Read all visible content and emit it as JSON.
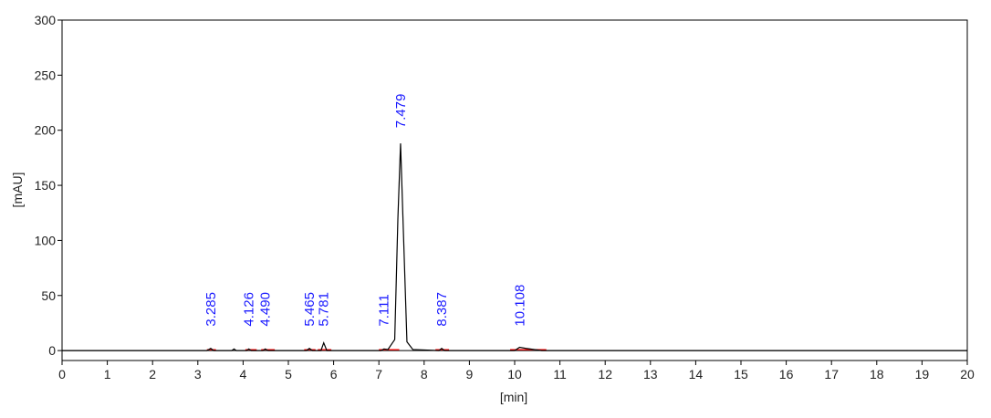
{
  "chart_data": {
    "type": "line",
    "x_label": "[min]",
    "y_label": "[mAU]",
    "x": [
      0,
      3.2,
      3.285,
      3.35,
      3.75,
      3.8,
      3.85,
      4.08,
      4.126,
      4.18,
      4.44,
      4.49,
      4.55,
      5.4,
      5.465,
      5.53,
      5.72,
      5.781,
      5.85,
      7.05,
      7.111,
      7.2,
      7.35,
      7.42,
      7.479,
      7.54,
      7.62,
      7.75,
      8.33,
      8.387,
      8.45,
      10.0,
      10.108,
      10.25,
      10.6,
      20
    ],
    "values": [
      0,
      0,
      2,
      0,
      0,
      1.5,
      0,
      0,
      1.5,
      0,
      0,
      1.5,
      0,
      0,
      2,
      0,
      0,
      7,
      0,
      0,
      1.5,
      1,
      10,
      120,
      188,
      110,
      8,
      1,
      0,
      2,
      0,
      0,
      3,
      2,
      0,
      0
    ],
    "color": "#000000",
    "baselines": [
      [
        3.2,
        3.4
      ],
      [
        4.05,
        4.3
      ],
      [
        4.4,
        4.7
      ],
      [
        5.35,
        5.6
      ],
      [
        5.65,
        5.95
      ],
      [
        7.0,
        7.45
      ],
      [
        8.25,
        8.55
      ],
      [
        9.9,
        10.7
      ]
    ],
    "baseline_color": "#ff0000",
    "peak_labels": [
      {
        "value": 3.285,
        "label": "3.285"
      },
      {
        "value": 4.126,
        "label": "4.126"
      },
      {
        "value": 4.49,
        "label": "4.490"
      },
      {
        "value": 5.465,
        "label": "5.465"
      },
      {
        "value": 5.781,
        "label": "5.781"
      },
      {
        "value": 7.111,
        "label": "7.111"
      },
      {
        "value": 7.479,
        "label": "7.479"
      },
      {
        "value": 8.387,
        "label": "8.387"
      },
      {
        "value": 10.108,
        "label": "10.108"
      }
    ],
    "xlim": [
      0,
      20
    ],
    "xticks": [
      0,
      1,
      2,
      3,
      4,
      5,
      6,
      7,
      8,
      9,
      10,
      11,
      12,
      13,
      14,
      15,
      16,
      17,
      18,
      19,
      20
    ],
    "ylim": [
      -9,
      300
    ],
    "yticks": [
      0,
      50,
      100,
      150,
      200,
      250,
      300
    ]
  }
}
